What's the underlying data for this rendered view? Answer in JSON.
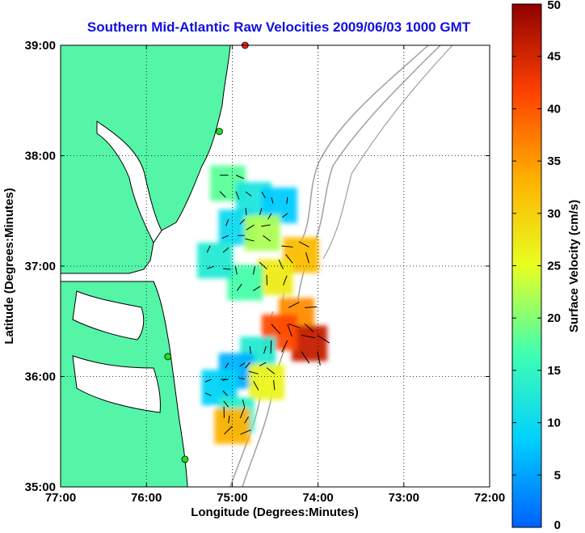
{
  "chart_data": {
    "type": "heatmap",
    "title": "Southern Mid-Atlantic Raw Velocities 2009/06/03 1000 GMT",
    "xlabel": "Longitude (Degrees:Minutes)",
    "ylabel": "Latitude (Degrees:Minutes)",
    "xlim": [
      -77,
      -72
    ],
    "ylim": [
      35,
      39
    ],
    "grid": true,
    "x_ticks": [
      {
        "value": -77,
        "label": "77:00"
      },
      {
        "value": -76,
        "label": "76:00"
      },
      {
        "value": -75,
        "label": "75:00"
      },
      {
        "value": -74,
        "label": "74:00"
      },
      {
        "value": -73,
        "label": "73:00"
      },
      {
        "value": -72,
        "label": "72:00"
      }
    ],
    "y_ticks": [
      {
        "value": 35,
        "label": "35:00"
      },
      {
        "value": 36,
        "label": "36:00"
      },
      {
        "value": 37,
        "label": "37:00"
      },
      {
        "value": 38,
        "label": "38:00"
      },
      {
        "value": 39,
        "label": "39:00"
      }
    ],
    "colorbar": {
      "label": "Surface Velocity (cm/s)",
      "min": 0,
      "max": 50,
      "ticks": [
        0,
        5,
        10,
        15,
        20,
        25,
        30,
        35,
        40,
        45,
        50
      ],
      "colors": [
        "#0060ff",
        "#00d0ff",
        "#40ffb0",
        "#e8ff20",
        "#ffb000",
        "#ff4000",
        "#900000"
      ]
    },
    "stations": [
      {
        "lon": -74.85,
        "lat": 39.0,
        "status": "red"
      },
      {
        "lon": -75.15,
        "lat": 38.22,
        "status": "green"
      },
      {
        "lon": -75.75,
        "lat": 36.18,
        "status": "green"
      },
      {
        "lon": -75.55,
        "lat": 35.25,
        "status": "green"
      }
    ],
    "velocity_cells": [
      {
        "lon": -75.05,
        "lat": 37.75,
        "speed": 18
      },
      {
        "lon": -74.75,
        "lat": 37.6,
        "speed": 12
      },
      {
        "lon": -74.45,
        "lat": 37.55,
        "speed": 8
      },
      {
        "lon": -74.95,
        "lat": 37.35,
        "speed": 10
      },
      {
        "lon": -74.65,
        "lat": 37.3,
        "speed": 22
      },
      {
        "lon": -74.2,
        "lat": 37.1,
        "speed": 32
      },
      {
        "lon": -74.5,
        "lat": 36.9,
        "speed": 27
      },
      {
        "lon": -74.85,
        "lat": 36.85,
        "speed": 17
      },
      {
        "lon": -75.2,
        "lat": 37.05,
        "speed": 13
      },
      {
        "lon": -74.25,
        "lat": 36.55,
        "speed": 36
      },
      {
        "lon": -74.1,
        "lat": 36.3,
        "speed": 46
      },
      {
        "lon": -74.45,
        "lat": 36.4,
        "speed": 41
      },
      {
        "lon": -74.7,
        "lat": 36.2,
        "speed": 13
      },
      {
        "lon": -74.95,
        "lat": 36.05,
        "speed": 6
      },
      {
        "lon": -75.15,
        "lat": 35.9,
        "speed": 9
      },
      {
        "lon": -74.6,
        "lat": 35.95,
        "speed": 26
      },
      {
        "lon": -74.95,
        "lat": 35.65,
        "speed": 14
      },
      {
        "lon": -75.0,
        "lat": 35.55,
        "speed": 33
      }
    ]
  }
}
